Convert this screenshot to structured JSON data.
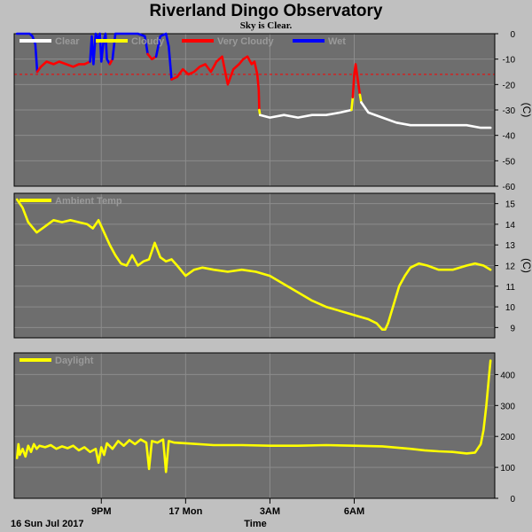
{
  "header": {
    "title": "Riverland Dingo Observatory",
    "subtitle": "Sky is Clear."
  },
  "footer": {
    "date_label": "16 Sun Jul 2017",
    "time_label": "Time"
  },
  "colors": {
    "background": "#c0c0c0",
    "panel": "#6e6e6e",
    "grid": "#8c8c8c",
    "clear": "#ffffff",
    "cloudy": "#ffff00",
    "very_cloudy": "#ff0000",
    "wet": "#0000ff",
    "threshold": "#ff0000"
  },
  "chart_data": [
    {
      "type": "line",
      "name": "sky",
      "ylabel": "(C)",
      "ylim": [
        -60,
        0
      ],
      "yticks": [
        0,
        -10,
        -20,
        -30,
        -40,
        -50,
        -60
      ],
      "threshold": -16,
      "legend": [
        "Clear",
        "Cloudy",
        "Very Cloudy",
        "Wet"
      ],
      "legend_placement": "top-left",
      "series": [
        {
          "state": "wet",
          "color": "#0000ff",
          "x": [
            18.0,
            18.25,
            18.45,
            18.55,
            18.65,
            18.72
          ],
          "y": [
            0,
            0,
            0,
            -1,
            -4,
            -15
          ]
        },
        {
          "state": "very_cloudy",
          "color": "#ff0000",
          "x": [
            18.72,
            18.85,
            19.05,
            19.3,
            19.5,
            19.75,
            20.0,
            20.2,
            20.4,
            20.6
          ],
          "y": [
            -15,
            -13,
            -11,
            -12,
            -11,
            -12,
            -13,
            -12,
            -12,
            -11
          ]
        },
        {
          "state": "wet",
          "color": "#0000ff",
          "x": [
            20.6,
            20.66,
            20.72,
            20.8,
            20.88,
            20.95,
            21.0,
            21.08,
            21.15,
            21.2,
            21.3
          ],
          "y": [
            -11,
            -1,
            -12,
            0,
            -2,
            0,
            -11,
            -3,
            0,
            -10,
            -12
          ]
        },
        {
          "state": "very_cloudy",
          "color": "#ff0000",
          "x": [
            21.3,
            21.4
          ],
          "y": [
            -12,
            -10
          ]
        },
        {
          "state": "wet",
          "color": "#0000ff",
          "x": [
            21.4,
            21.5,
            21.7,
            22.0,
            22.3,
            22.55,
            22.65
          ],
          "y": [
            -10,
            0,
            0,
            0,
            0,
            -1,
            -8
          ]
        },
        {
          "state": "very_cloudy",
          "color": "#ff0000",
          "x": [
            22.65,
            22.8,
            22.95
          ],
          "y": [
            -8,
            -10,
            -9
          ]
        },
        {
          "state": "wet",
          "color": "#0000ff",
          "x": [
            22.95,
            23.1,
            23.3,
            23.4,
            23.5
          ],
          "y": [
            -9,
            -1,
            0,
            -5,
            -18
          ]
        },
        {
          "state": "very_cloudy",
          "color": "#ff0000",
          "x": [
            23.5,
            23.7,
            23.9,
            24.1,
            24.3,
            24.5,
            24.7,
            24.9,
            25.1,
            25.3,
            25.5,
            25.7,
            25.9,
            26.05,
            26.2,
            26.35,
            26.45,
            26.55,
            26.6,
            26.62
          ],
          "y": [
            -18,
            -17,
            -14,
            -16,
            -15,
            -13,
            -12,
            -15,
            -11,
            -9,
            -20,
            -14,
            -12,
            -10,
            -9,
            -12,
            -11,
            -16,
            -22,
            -30
          ]
        },
        {
          "state": "cloudy",
          "color": "#ffff00",
          "x": [
            26.62,
            26.65
          ],
          "y": [
            -30,
            -32
          ]
        },
        {
          "state": "clear",
          "color": "#ffffff",
          "x": [
            26.65,
            27.0,
            27.5,
            28.0,
            28.5,
            29.0,
            29.5,
            29.9
          ],
          "y": [
            -32,
            -33,
            -32,
            -33,
            -32,
            -32,
            -31,
            -30
          ]
        },
        {
          "state": "cloudy",
          "color": "#ffff00",
          "x": [
            29.9,
            29.95
          ],
          "y": [
            -30,
            -25
          ]
        },
        {
          "state": "very_cloudy",
          "color": "#ff0000",
          "x": [
            29.95,
            30.0,
            30.05,
            30.1,
            30.2
          ],
          "y": [
            -25,
            -16,
            -12,
            -16,
            -24
          ]
        },
        {
          "state": "cloudy",
          "color": "#ffff00",
          "x": [
            30.2,
            30.25
          ],
          "y": [
            -24,
            -27
          ]
        },
        {
          "state": "clear",
          "color": "#ffffff",
          "x": [
            30.25,
            30.5,
            31.0,
            31.5,
            32.0,
            32.5,
            33.0,
            33.5,
            34.0,
            34.5,
            34.85
          ],
          "y": [
            -27,
            -31,
            -33,
            -35,
            -36,
            -36,
            -36,
            -36,
            -36,
            -37,
            -37
          ]
        }
      ]
    },
    {
      "type": "line",
      "name": "Ambient Temp",
      "ylabel": "(C)",
      "ylim": [
        8.5,
        15.5
      ],
      "yticks": [
        9,
        10,
        11,
        12,
        13,
        14,
        15
      ],
      "legend": [
        "Ambient Temp"
      ],
      "legend_placement": "top-left",
      "series": [
        {
          "name": "Ambient Temp",
          "color": "#ffff00",
          "x": [
            18.0,
            18.2,
            18.4,
            18.7,
            19.0,
            19.3,
            19.6,
            19.9,
            20.2,
            20.5,
            20.7,
            20.9,
            21.1,
            21.3,
            21.5,
            21.7,
            21.9,
            22.1,
            22.3,
            22.5,
            22.7,
            22.9,
            23.1,
            23.3,
            23.5,
            23.7,
            24.0,
            24.3,
            24.6,
            25.0,
            25.5,
            26.0,
            26.5,
            27.0,
            27.5,
            28.0,
            28.5,
            29.0,
            29.5,
            30.0,
            30.5,
            30.8,
            31.0,
            31.1,
            31.2,
            31.4,
            31.6,
            31.8,
            32.0,
            32.3,
            32.6,
            33.0,
            33.5,
            34.0,
            34.3,
            34.6,
            34.85
          ],
          "y": [
            15.2,
            14.8,
            14.1,
            13.6,
            13.9,
            14.2,
            14.1,
            14.2,
            14.1,
            14.0,
            13.8,
            14.2,
            13.6,
            13.0,
            12.5,
            12.1,
            12.0,
            12.5,
            12.0,
            12.2,
            12.3,
            13.1,
            12.4,
            12.2,
            12.3,
            12.0,
            11.5,
            11.8,
            11.9,
            11.8,
            11.7,
            11.8,
            11.7,
            11.5,
            11.1,
            10.7,
            10.3,
            10.0,
            9.8,
            9.6,
            9.4,
            9.2,
            8.9,
            8.9,
            9.2,
            10.1,
            11.0,
            11.5,
            11.9,
            12.1,
            12.0,
            11.8,
            11.8,
            12.0,
            12.1,
            12.0,
            11.8
          ]
        }
      ]
    },
    {
      "type": "line",
      "name": "Daylight",
      "ylim": [
        0,
        470
      ],
      "yticks": [
        0,
        100,
        200,
        300,
        400
      ],
      "legend": [
        "Daylight"
      ],
      "legend_placement": "top-left",
      "x_tick_values": [
        21,
        24,
        27,
        30
      ],
      "x_tick_labels": [
        "9PM",
        "17 Mon",
        "3AM",
        "6AM"
      ],
      "xlim": [
        17.9,
        35.0
      ],
      "series": [
        {
          "name": "Daylight",
          "color": "#ffff00",
          "x": [
            18.0,
            18.05,
            18.1,
            18.2,
            18.3,
            18.4,
            18.5,
            18.6,
            18.7,
            18.8,
            19.0,
            19.2,
            19.4,
            19.6,
            19.8,
            20.0,
            20.2,
            20.4,
            20.6,
            20.8,
            20.9,
            21.0,
            21.1,
            21.2,
            21.4,
            21.6,
            21.8,
            22.0,
            22.2,
            22.4,
            22.6,
            22.7,
            22.8,
            23.0,
            23.1,
            23.2,
            23.3,
            23.4,
            23.6,
            24.0,
            25.0,
            26.0,
            27.0,
            28.0,
            29.0,
            30.0,
            31.0,
            32.0,
            32.5,
            33.0,
            33.5,
            34.0,
            34.3,
            34.5,
            34.6,
            34.7,
            34.8,
            34.85
          ],
          "y": [
            130,
            175,
            140,
            160,
            135,
            170,
            150,
            175,
            160,
            170,
            165,
            172,
            160,
            168,
            162,
            170,
            155,
            165,
            150,
            160,
            115,
            165,
            140,
            178,
            160,
            185,
            170,
            188,
            175,
            190,
            180,
            95,
            185,
            180,
            185,
            190,
            85,
            185,
            180,
            178,
            172,
            172,
            170,
            170,
            172,
            170,
            168,
            160,
            155,
            152,
            150,
            145,
            148,
            175,
            220,
            300,
            400,
            445
          ]
        }
      ]
    }
  ]
}
